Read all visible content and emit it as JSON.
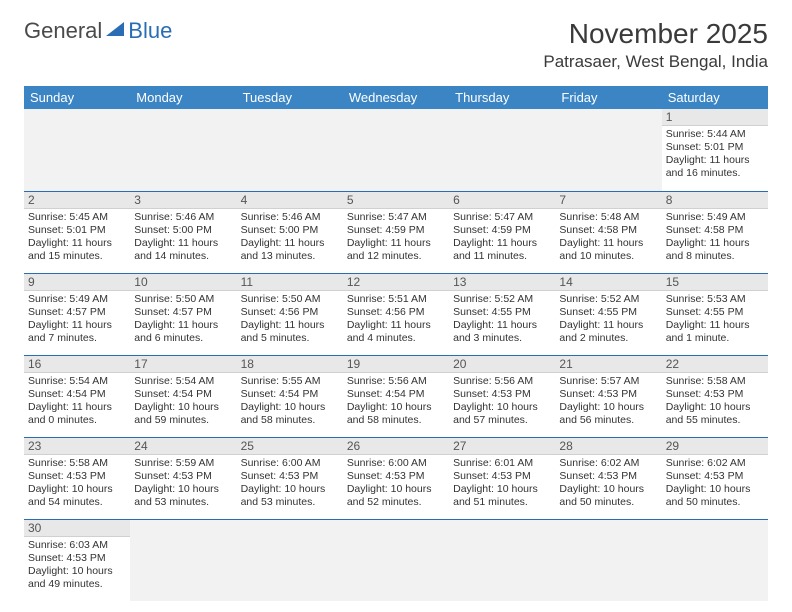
{
  "logo": {
    "text1": "General",
    "text2": "Blue",
    "color1": "#4a4a4a",
    "color2": "#2a6db5"
  },
  "title": "November 2025",
  "location": "Patrasaer, West Bengal, India",
  "weekdays": [
    "Sunday",
    "Monday",
    "Tuesday",
    "Wednesday",
    "Thursday",
    "Friday",
    "Saturday"
  ],
  "header_bg": "#3b85c5",
  "header_fg": "#ffffff",
  "line_color": "#2a6db5",
  "daynum_bg": "#e8e8e8",
  "empty_bg": "#f2f2f2",
  "text_color": "#333333",
  "title_color": "#3a3a3a",
  "first_weekday": 6,
  "days": [
    {
      "n": 1,
      "sunrise": "5:44 AM",
      "sunset": "5:01 PM",
      "daylight": "11 hours and 16 minutes."
    },
    {
      "n": 2,
      "sunrise": "5:45 AM",
      "sunset": "5:01 PM",
      "daylight": "11 hours and 15 minutes."
    },
    {
      "n": 3,
      "sunrise": "5:46 AM",
      "sunset": "5:00 PM",
      "daylight": "11 hours and 14 minutes."
    },
    {
      "n": 4,
      "sunrise": "5:46 AM",
      "sunset": "5:00 PM",
      "daylight": "11 hours and 13 minutes."
    },
    {
      "n": 5,
      "sunrise": "5:47 AM",
      "sunset": "4:59 PM",
      "daylight": "11 hours and 12 minutes."
    },
    {
      "n": 6,
      "sunrise": "5:47 AM",
      "sunset": "4:59 PM",
      "daylight": "11 hours and 11 minutes."
    },
    {
      "n": 7,
      "sunrise": "5:48 AM",
      "sunset": "4:58 PM",
      "daylight": "11 hours and 10 minutes."
    },
    {
      "n": 8,
      "sunrise": "5:49 AM",
      "sunset": "4:58 PM",
      "daylight": "11 hours and 8 minutes."
    },
    {
      "n": 9,
      "sunrise": "5:49 AM",
      "sunset": "4:57 PM",
      "daylight": "11 hours and 7 minutes."
    },
    {
      "n": 10,
      "sunrise": "5:50 AM",
      "sunset": "4:57 PM",
      "daylight": "11 hours and 6 minutes."
    },
    {
      "n": 11,
      "sunrise": "5:50 AM",
      "sunset": "4:56 PM",
      "daylight": "11 hours and 5 minutes."
    },
    {
      "n": 12,
      "sunrise": "5:51 AM",
      "sunset": "4:56 PM",
      "daylight": "11 hours and 4 minutes."
    },
    {
      "n": 13,
      "sunrise": "5:52 AM",
      "sunset": "4:55 PM",
      "daylight": "11 hours and 3 minutes."
    },
    {
      "n": 14,
      "sunrise": "5:52 AM",
      "sunset": "4:55 PM",
      "daylight": "11 hours and 2 minutes."
    },
    {
      "n": 15,
      "sunrise": "5:53 AM",
      "sunset": "4:55 PM",
      "daylight": "11 hours and 1 minute."
    },
    {
      "n": 16,
      "sunrise": "5:54 AM",
      "sunset": "4:54 PM",
      "daylight": "11 hours and 0 minutes."
    },
    {
      "n": 17,
      "sunrise": "5:54 AM",
      "sunset": "4:54 PM",
      "daylight": "10 hours and 59 minutes."
    },
    {
      "n": 18,
      "sunrise": "5:55 AM",
      "sunset": "4:54 PM",
      "daylight": "10 hours and 58 minutes."
    },
    {
      "n": 19,
      "sunrise": "5:56 AM",
      "sunset": "4:54 PM",
      "daylight": "10 hours and 58 minutes."
    },
    {
      "n": 20,
      "sunrise": "5:56 AM",
      "sunset": "4:53 PM",
      "daylight": "10 hours and 57 minutes."
    },
    {
      "n": 21,
      "sunrise": "5:57 AM",
      "sunset": "4:53 PM",
      "daylight": "10 hours and 56 minutes."
    },
    {
      "n": 22,
      "sunrise": "5:58 AM",
      "sunset": "4:53 PM",
      "daylight": "10 hours and 55 minutes."
    },
    {
      "n": 23,
      "sunrise": "5:58 AM",
      "sunset": "4:53 PM",
      "daylight": "10 hours and 54 minutes."
    },
    {
      "n": 24,
      "sunrise": "5:59 AM",
      "sunset": "4:53 PM",
      "daylight": "10 hours and 53 minutes."
    },
    {
      "n": 25,
      "sunrise": "6:00 AM",
      "sunset": "4:53 PM",
      "daylight": "10 hours and 53 minutes."
    },
    {
      "n": 26,
      "sunrise": "6:00 AM",
      "sunset": "4:53 PM",
      "daylight": "10 hours and 52 minutes."
    },
    {
      "n": 27,
      "sunrise": "6:01 AM",
      "sunset": "4:53 PM",
      "daylight": "10 hours and 51 minutes."
    },
    {
      "n": 28,
      "sunrise": "6:02 AM",
      "sunset": "4:53 PM",
      "daylight": "10 hours and 50 minutes."
    },
    {
      "n": 29,
      "sunrise": "6:02 AM",
      "sunset": "4:53 PM",
      "daylight": "10 hours and 50 minutes."
    },
    {
      "n": 30,
      "sunrise": "6:03 AM",
      "sunset": "4:53 PM",
      "daylight": "10 hours and 49 minutes."
    }
  ],
  "labels": {
    "sunrise": "Sunrise:",
    "sunset": "Sunset:",
    "daylight": "Daylight:"
  }
}
